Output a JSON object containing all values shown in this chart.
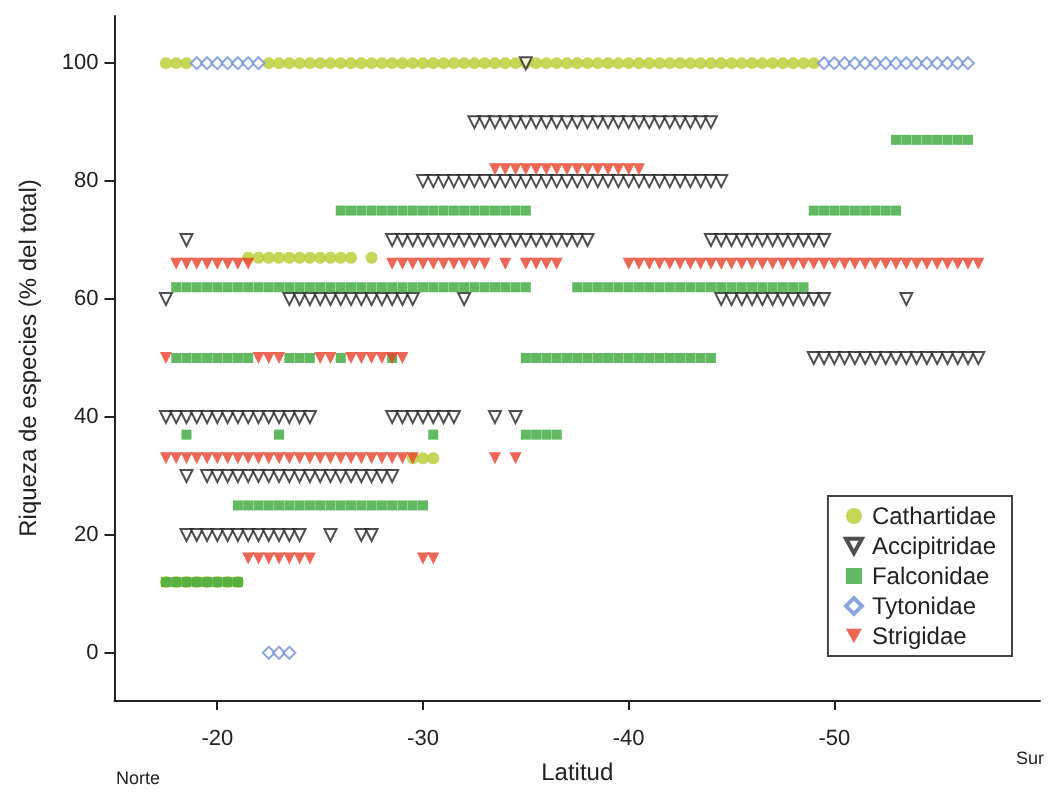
{
  "chart_data": {
    "type": "scatter",
    "xlabel": "Latitud",
    "ylabel": "Riqueza de especies (% del total)",
    "xlim": [
      -15,
      -60
    ],
    "xticks": [
      -20,
      -30,
      -40,
      -50
    ],
    "ylim": [
      -8,
      108
    ],
    "yticks": [
      0,
      20,
      40,
      60,
      80,
      100
    ],
    "grid": false,
    "legend": "bottom right",
    "annotations": [
      "Norte",
      "Sur"
    ],
    "series": [
      {
        "name": "Cathartidae",
        "color": "#b8cc30",
        "marker": "circle",
        "x": [
          -17.5,
          -18,
          -18.5,
          -22.5,
          -23,
          -23.5,
          -24,
          -24.5,
          -25,
          -25.5,
          -26,
          -26.5,
          -27,
          -27.5,
          -28,
          -28.5,
          -29,
          -29.5,
          -30,
          -30.5,
          -31,
          -31.5,
          -32,
          -32.5,
          -33,
          -33.5,
          -34,
          -34.5,
          -35,
          -35.5,
          -36,
          -36.5,
          -37,
          -37.5,
          -38,
          -38.5,
          -39,
          -39.5,
          -40,
          -40.5,
          -41,
          -41.5,
          -42,
          -42.5,
          -43,
          -43.5,
          -44,
          -44.5,
          -45,
          -45.5,
          -46,
          -46.5,
          -47,
          -47.5,
          -48,
          -48.5,
          -49,
          -21.5,
          -22,
          -22.5,
          -23,
          -23.5,
          -24,
          -24.5,
          -25,
          -25.5,
          -26,
          -26.5,
          -27.5,
          -29.5,
          -30,
          -30.5,
          -17.5,
          -18,
          -18.5,
          -19,
          -19.5,
          -20,
          -20.5,
          -21
        ],
        "values": [
          100,
          100,
          100,
          100,
          100,
          100,
          100,
          100,
          100,
          100,
          100,
          100,
          100,
          100,
          100,
          100,
          100,
          100,
          100,
          100,
          100,
          100,
          100,
          100,
          100,
          100,
          100,
          100,
          100,
          100,
          100,
          100,
          100,
          100,
          100,
          100,
          100,
          100,
          100,
          100,
          100,
          100,
          100,
          100,
          100,
          100,
          100,
          100,
          100,
          100,
          100,
          100,
          100,
          100,
          100,
          100,
          100,
          67,
          67,
          67,
          67,
          67,
          67,
          67,
          67,
          67,
          67,
          67,
          67,
          33,
          33,
          33,
          12,
          12,
          12,
          12,
          12,
          12,
          12,
          12
        ]
      },
      {
        "name": "Accipitridae",
        "color": "#222222",
        "marker": "triangle-down-open",
        "x": [
          -35,
          -32.5,
          -33,
          -33.5,
          -34,
          -34.5,
          -35,
          -35.5,
          -36,
          -36.5,
          -37,
          -37.5,
          -38,
          -38.5,
          -39,
          -39.5,
          -40,
          -40.5,
          -41,
          -41.5,
          -42,
          -42.5,
          -43,
          -43.5,
          -44,
          -30,
          -30.5,
          -31,
          -31.5,
          -32,
          -32.5,
          -33,
          -33.5,
          -34,
          -34.5,
          -35,
          -35.5,
          -36,
          -36.5,
          -37,
          -37.5,
          -38,
          -38.5,
          -39,
          -39.5,
          -40,
          -40.5,
          -41,
          -41.5,
          -42,
          -42.5,
          -43,
          -43.5,
          -44,
          -44.5,
          -18.5,
          -28.5,
          -29,
          -29.5,
          -30,
          -30.5,
          -31,
          -31.5,
          -32,
          -32.5,
          -33,
          -33.5,
          -34,
          -34.5,
          -35,
          -35.5,
          -36,
          -36.5,
          -37,
          -37.5,
          -38,
          -44,
          -44.5,
          -45,
          -45.5,
          -46,
          -46.5,
          -47,
          -47.5,
          -48,
          -48.5,
          -49,
          -49.5,
          -17.5,
          -23.5,
          -24,
          -24.5,
          -25,
          -25.5,
          -26,
          -26.5,
          -27,
          -27.5,
          -28,
          -28.5,
          -29,
          -29.5,
          -32,
          -44.5,
          -45,
          -45.5,
          -46,
          -46.5,
          -47,
          -47.5,
          -48,
          -48.5,
          -49,
          -49.5,
          -53.5,
          -49,
          -49.5,
          -50,
          -50.5,
          -51,
          -51.5,
          -52,
          -52.5,
          -53,
          -53.5,
          -54,
          -54.5,
          -55,
          -55.5,
          -56,
          -56.5,
          -57,
          -17.5,
          -18,
          -18.5,
          -19,
          -19.5,
          -20,
          -20.5,
          -21,
          -21.5,
          -22,
          -22.5,
          -23,
          -23.5,
          -24,
          -24.5,
          -28.5,
          -29,
          -29.5,
          -30,
          -30.5,
          -31,
          -31.5,
          -33.5,
          -34.5,
          -18.5,
          -19.5,
          -20,
          -20.5,
          -21,
          -21.5,
          -22,
          -22.5,
          -23,
          -23.5,
          -24,
          -24.5,
          -25,
          -25.5,
          -26,
          -26.5,
          -27,
          -27.5,
          -28,
          -28.5,
          -18.5,
          -19,
          -19.5,
          -20,
          -20.5,
          -21,
          -21.5,
          -22,
          -22.5,
          -23,
          -23.5,
          -24,
          -25.5,
          -27,
          -27.5
        ],
        "values": [
          100,
          90,
          90,
          90,
          90,
          90,
          90,
          90,
          90,
          90,
          90,
          90,
          90,
          90,
          90,
          90,
          90,
          90,
          90,
          90,
          90,
          90,
          90,
          90,
          90,
          80,
          80,
          80,
          80,
          80,
          80,
          80,
          80,
          80,
          80,
          80,
          80,
          80,
          80,
          80,
          80,
          80,
          80,
          80,
          80,
          80,
          80,
          80,
          80,
          80,
          80,
          80,
          80,
          80,
          80,
          70,
          70,
          70,
          70,
          70,
          70,
          70,
          70,
          70,
          70,
          70,
          70,
          70,
          70,
          70,
          70,
          70,
          70,
          70,
          70,
          70,
          70,
          70,
          70,
          70,
          70,
          70,
          70,
          70,
          70,
          70,
          70,
          70,
          60,
          60,
          60,
          60,
          60,
          60,
          60,
          60,
          60,
          60,
          60,
          60,
          60,
          60,
          60,
          60,
          60,
          60,
          60,
          60,
          60,
          60,
          60,
          60,
          60,
          60,
          60,
          50,
          50,
          50,
          50,
          50,
          50,
          50,
          50,
          50,
          50,
          50,
          50,
          50,
          50,
          50,
          50,
          50,
          40,
          40,
          40,
          40,
          40,
          40,
          40,
          40,
          40,
          40,
          40,
          40,
          40,
          40,
          40,
          40,
          40,
          40,
          40,
          40,
          40,
          40,
          40,
          40,
          30,
          30,
          30,
          30,
          30,
          30,
          30,
          30,
          30,
          30,
          30,
          30,
          30,
          30,
          30,
          30,
          30,
          30,
          30,
          30,
          20,
          20,
          20,
          20,
          20,
          20,
          20,
          20,
          20,
          20,
          20,
          20,
          20,
          20,
          20
        ]
      },
      {
        "name": "Falconidae",
        "color": "#3aa83a",
        "marker": "square",
        "x": [
          -53,
          -53.5,
          -54,
          -54.5,
          -55,
          -55.5,
          -56,
          -56.5,
          -26,
          -26.5,
          -27,
          -27.5,
          -28,
          -28.5,
          -29,
          -29.5,
          -30,
          -30.5,
          -31,
          -31.5,
          -32,
          -32.5,
          -33,
          -33.5,
          -34,
          -34.5,
          -35,
          -49,
          -49.5,
          -50,
          -50.5,
          -51,
          -51.5,
          -52,
          -52.5,
          -53,
          -18,
          -18.5,
          -19,
          -19.5,
          -20,
          -20.5,
          -21,
          -21.5,
          -22,
          -22.5,
          -23,
          -23.5,
          -24,
          -24.5,
          -25,
          -25.5,
          -26,
          -26.5,
          -27,
          -27.5,
          -28,
          -28.5,
          -29,
          -29.5,
          -30,
          -30.5,
          -31,
          -31.5,
          -32,
          -32.5,
          -33,
          -33.5,
          -34,
          -34.5,
          -35,
          -37.5,
          -38,
          -38.5,
          -39,
          -39.5,
          -40,
          -40.5,
          -41,
          -41.5,
          -42,
          -42.5,
          -43,
          -43.5,
          -44,
          -44.5,
          -45,
          -45.5,
          -46,
          -46.5,
          -47,
          -47.5,
          -48,
          -48.5,
          -18,
          -18.5,
          -19,
          -19.5,
          -20,
          -20.5,
          -21,
          -21.5,
          -23.5,
          -24,
          -24.5,
          -26,
          -28.5,
          -35,
          -35.5,
          -36,
          -36.5,
          -37,
          -37.5,
          -38,
          -38.5,
          -39,
          -39.5,
          -40,
          -40.5,
          -41,
          -41.5,
          -42,
          -42.5,
          -43,
          -43.5,
          -44,
          -18.5,
          -23,
          -30.5,
          -35,
          -35.5,
          -36,
          -36.5,
          -21,
          -21.5,
          -22,
          -22.5,
          -23,
          -23.5,
          -24,
          -24.5,
          -25,
          -25.5,
          -26,
          -26.5,
          -27,
          -27.5,
          -28,
          -28.5,
          -29,
          -29.5,
          -30,
          -17.5,
          -18,
          -18.5,
          -19,
          -19.5,
          -20,
          -20.5,
          -21
        ],
        "values": [
          87,
          87,
          87,
          87,
          87,
          87,
          87,
          87,
          75,
          75,
          75,
          75,
          75,
          75,
          75,
          75,
          75,
          75,
          75,
          75,
          75,
          75,
          75,
          75,
          75,
          75,
          75,
          75,
          75,
          75,
          75,
          75,
          75,
          75,
          75,
          75,
          62,
          62,
          62,
          62,
          62,
          62,
          62,
          62,
          62,
          62,
          62,
          62,
          62,
          62,
          62,
          62,
          62,
          62,
          62,
          62,
          62,
          62,
          62,
          62,
          62,
          62,
          62,
          62,
          62,
          62,
          62,
          62,
          62,
          62,
          62,
          62,
          62,
          62,
          62,
          62,
          62,
          62,
          62,
          62,
          62,
          62,
          62,
          62,
          62,
          62,
          62,
          62,
          62,
          62,
          62,
          62,
          62,
          62,
          50,
          50,
          50,
          50,
          50,
          50,
          50,
          50,
          50,
          50,
          50,
          50,
          50,
          50,
          50,
          50,
          50,
          50,
          50,
          50,
          50,
          50,
          50,
          50,
          50,
          50,
          50,
          50,
          50,
          50,
          50,
          50,
          37,
          37,
          37,
          37,
          37,
          37,
          37,
          25,
          25,
          25,
          25,
          25,
          25,
          25,
          25,
          25,
          25,
          25,
          25,
          25,
          25,
          25,
          25,
          25,
          25,
          25,
          12,
          12,
          12,
          12,
          12,
          12,
          12,
          12
        ]
      },
      {
        "name": "Tytonidae",
        "color": "#6f8fd8",
        "marker": "diamond-open",
        "x": [
          -19,
          -19.5,
          -20,
          -20.5,
          -21,
          -21.5,
          -22,
          -49.5,
          -50,
          -50.5,
          -51,
          -51.5,
          -52,
          -52.5,
          -53,
          -53.5,
          -54,
          -54.5,
          -55,
          -55.5,
          -56,
          -56.5,
          -22.5,
          -23,
          -23.5
        ],
        "values": [
          100,
          100,
          100,
          100,
          100,
          100,
          100,
          100,
          100,
          100,
          100,
          100,
          100,
          100,
          100,
          100,
          100,
          100,
          100,
          100,
          100,
          100,
          0,
          0,
          0
        ]
      },
      {
        "name": "Strigidae",
        "color": "#e8402c",
        "marker": "triangle-down",
        "x": [
          -33.5,
          -34,
          -34.5,
          -35,
          -35.5,
          -36,
          -36.5,
          -37,
          -37.5,
          -38,
          -38.5,
          -39,
          -39.5,
          -40,
          -40.5,
          -18,
          -18.5,
          -19,
          -19.5,
          -20,
          -20.5,
          -21,
          -21.5,
          -28.5,
          -29,
          -29.5,
          -30,
          -30.5,
          -31,
          -31.5,
          -32,
          -32.5,
          -33,
          -34,
          -35,
          -35.5,
          -36,
          -36.5,
          -40,
          -40.5,
          -41,
          -41.5,
          -42,
          -42.5,
          -43,
          -43.5,
          -44,
          -44.5,
          -45,
          -45.5,
          -46,
          -46.5,
          -47,
          -47.5,
          -48,
          -48.5,
          -49,
          -49.5,
          -50,
          -50.5,
          -51,
          -51.5,
          -52,
          -52.5,
          -53,
          -53.5,
          -54,
          -54.5,
          -55,
          -55.5,
          -56,
          -56.5,
          -57,
          -17.5,
          -22,
          -22.5,
          -23,
          -25,
          -25.5,
          -26.5,
          -27,
          -27.5,
          -28,
          -28.5,
          -29,
          -17.5,
          -18,
          -18.5,
          -19,
          -19.5,
          -20,
          -20.5,
          -21,
          -21.5,
          -22,
          -22.5,
          -23,
          -23.5,
          -24,
          -24.5,
          -25,
          -25.5,
          -26,
          -26.5,
          -27,
          -27.5,
          -28,
          -28.5,
          -29,
          -29.5,
          -33.5,
          -34.5,
          -21.5,
          -22,
          -22.5,
          -23,
          -23.5,
          -24,
          -24.5,
          -30,
          -30.5
        ],
        "values": [
          82,
          82,
          82,
          82,
          82,
          82,
          82,
          82,
          82,
          82,
          82,
          82,
          82,
          82,
          82,
          66,
          66,
          66,
          66,
          66,
          66,
          66,
          66,
          66,
          66,
          66,
          66,
          66,
          66,
          66,
          66,
          66,
          66,
          66,
          66,
          66,
          66,
          66,
          66,
          66,
          66,
          66,
          66,
          66,
          66,
          66,
          66,
          66,
          66,
          66,
          66,
          66,
          66,
          66,
          66,
          66,
          66,
          66,
          66,
          66,
          66,
          66,
          66,
          66,
          66,
          66,
          66,
          66,
          66,
          66,
          66,
          66,
          66,
          50,
          50,
          50,
          50,
          50,
          50,
          50,
          50,
          50,
          50,
          50,
          50,
          33,
          33,
          33,
          33,
          33,
          33,
          33,
          33,
          33,
          33,
          33,
          33,
          33,
          33,
          33,
          33,
          33,
          33,
          33,
          33,
          33,
          33,
          33,
          33,
          33,
          33,
          33,
          16,
          16,
          16,
          16,
          16,
          16,
          16,
          16,
          16
        ]
      }
    ]
  }
}
